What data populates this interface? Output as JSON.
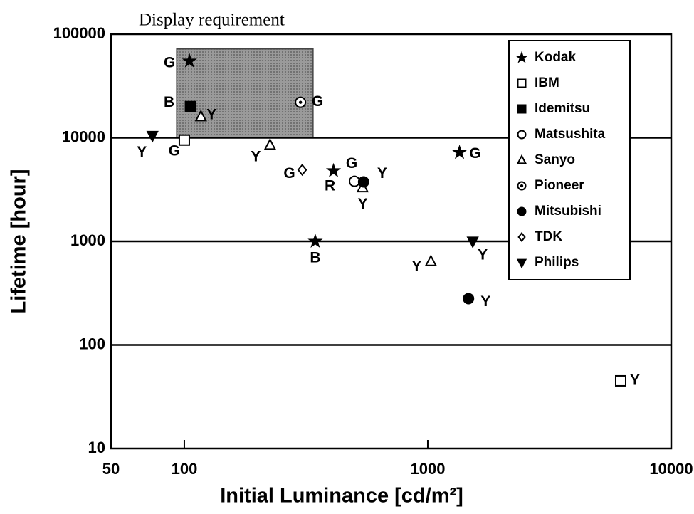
{
  "chart_data": {
    "type": "scatter",
    "xlabel": "Initial Luminance [cd/m²]",
    "ylabel": "Lifetime [hour]",
    "xscale": "log",
    "yscale": "log",
    "xlim": [
      50,
      10000
    ],
    "ylim": [
      10,
      100000
    ],
    "xticks": [
      50,
      100,
      1000,
      10000
    ],
    "yticks": [
      10,
      100,
      1000,
      10000,
      100000
    ],
    "grid": "y",
    "legend": "upper right",
    "region": {
      "label": "Display requirement",
      "x": [
        93,
        338
      ],
      "y": [
        10000,
        72000
      ],
      "color": "#8a8a8a"
    },
    "series": [
      {
        "name": "Kodak",
        "marker": "star",
        "color": "#000000",
        "x": [
          105,
          345,
          410,
          1350
        ],
        "y": [
          55000,
          1000,
          4800,
          7200
        ],
        "labels": [
          "G",
          "B",
          "R",
          "G"
        ]
      },
      {
        "name": "IBM",
        "marker": "square-open",
        "color": "#000000",
        "x": [
          100,
          6200
        ],
        "y": [
          9500,
          45
        ],
        "labels": [
          "G",
          "Y"
        ]
      },
      {
        "name": "Idemitsu",
        "marker": "square",
        "color": "#000000",
        "x": [
          106
        ],
        "y": [
          20000
        ],
        "labels": [
          "B"
        ]
      },
      {
        "name": "Matsushita",
        "marker": "circle-open",
        "color": "#000000",
        "x": [
          500
        ],
        "y": [
          3800
        ],
        "labels": [
          "G"
        ]
      },
      {
        "name": "Sanyo",
        "marker": "triangle-open",
        "color": "#000000",
        "x": [
          117,
          225,
          540,
          1030
        ],
        "y": [
          16000,
          8500,
          3300,
          640
        ],
        "labels": [
          "Y",
          "Y",
          "Y",
          "Y"
        ]
      },
      {
        "name": "Pioneer",
        "marker": "circle-dot",
        "color": "#000000",
        "x": [
          300
        ],
        "y": [
          22000
        ],
        "labels": [
          "G"
        ]
      },
      {
        "name": "Mitsubishi",
        "marker": "circle",
        "color": "#000000",
        "x": [
          545,
          1470
        ],
        "y": [
          3750,
          280
        ],
        "labels": [
          "Y",
          "Y"
        ]
      },
      {
        "name": "TDK",
        "marker": "diamond-open",
        "color": "#000000",
        "x": [
          305
        ],
        "y": [
          4900
        ],
        "labels": [
          "G"
        ]
      },
      {
        "name": "Philips",
        "marker": "triangle-down",
        "color": "#000000",
        "x": [
          74,
          1530
        ],
        "y": [
          10500,
          1000
        ],
        "labels": [
          "Y",
          "Y"
        ]
      }
    ]
  }
}
